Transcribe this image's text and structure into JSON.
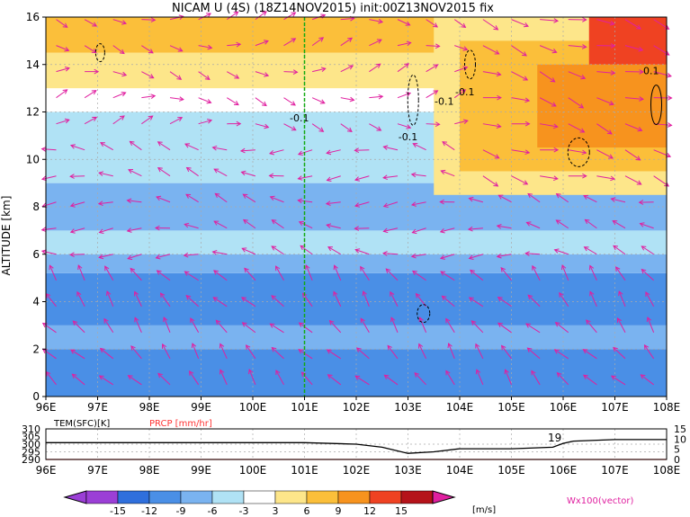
{
  "title": "NICAM U (4S) (18Z14NOV2015) init:00Z13NOV2015 fix",
  "colors": {
    "neg15": "#9b3fd6",
    "neg12": "#2f6fdc",
    "neg9": "#4a8fe6",
    "neg6": "#7ab3f0",
    "neg3": "#b0e2f5",
    "zero": "#ffffff",
    "pos3": "#fde68a",
    "pos6": "#fbbf3a",
    "pos9": "#f7931e",
    "pos12": "#ef4222",
    "pos15": "#b5131a",
    "over": "#e020a0",
    "vector": "#e020a0",
    "green": "#11aa11",
    "prcp": "#ff3333",
    "grid": "#aaaaaa"
  },
  "chart_data": [
    {
      "type": "heatmap",
      "title": "NICAM U (4S) (18Z14NOV2015) init:00Z13NOV2015 fix",
      "xlabel": "",
      "ylabel": "ALTITUDE [km]",
      "x_ticks": [
        "96E",
        "97E",
        "98E",
        "99E",
        "100E",
        "101E",
        "102E",
        "103E",
        "104E",
        "105E",
        "106E",
        "107E",
        "108E"
      ],
      "y_ticks": [
        "0",
        "2",
        "4",
        "6",
        "8",
        "10",
        "12",
        "14",
        "16"
      ],
      "xlim": [
        96,
        108
      ],
      "ylim": [
        0,
        16
      ],
      "grid": true,
      "marker_longitude": 101,
      "contour_labels": [
        "-0.1",
        "-0.1",
        "-0.1",
        "-0.1",
        "0.1"
      ],
      "bands": [
        {
          "z0": 0.0,
          "z1": 2.0,
          "u": -9
        },
        {
          "z0": 2.0,
          "z1": 3.0,
          "u": -6
        },
        {
          "z0": 3.0,
          "z1": 5.2,
          "u": -9
        },
        {
          "z0": 5.2,
          "z1": 6.0,
          "u": -6
        },
        {
          "z0": 6.0,
          "z1": 7.0,
          "u": -3
        },
        {
          "z0": 7.0,
          "z1": 9.0,
          "u": -6
        },
        {
          "z0": 9.0,
          "z1": 12.0,
          "u": -3
        },
        {
          "z0": 12.0,
          "z1": 13.0,
          "u": 0
        },
        {
          "z0": 13.0,
          "z1": 14.5,
          "u": 3
        },
        {
          "z0": 14.5,
          "z1": 16.0,
          "u": 6
        }
      ],
      "east_upper": [
        {
          "x0": 103.5,
          "x1": 108,
          "z0": 8.5,
          "z1": 16,
          "u": 3
        },
        {
          "x0": 104,
          "x1": 108,
          "z0": 9.5,
          "z1": 15,
          "u": 6
        },
        {
          "x0": 105.5,
          "x1": 108,
          "z0": 10.5,
          "z1": 14,
          "u": 9
        },
        {
          "x0": 106.5,
          "x1": 108,
          "z0": 14,
          "z1": 16,
          "u": 12
        }
      ]
    },
    {
      "type": "line",
      "title": "",
      "series": [
        {
          "name": "TEM(SFC)[K]",
          "axis": "left",
          "x": [
            96,
            97,
            98,
            99,
            100,
            101,
            102,
            102.5,
            103,
            103.5,
            104,
            105,
            105.8,
            106,
            106.2,
            107,
            108
          ],
          "y": [
            301,
            301,
            301,
            301,
            301,
            301,
            300,
            298,
            294,
            295,
            297,
            297,
            298,
            300.5,
            302,
            303,
            303
          ]
        },
        {
          "name": "PRCP [mm/hr]",
          "axis": "right",
          "x": [
            96,
            108
          ],
          "y": [
            0,
            0
          ]
        }
      ],
      "left_ticks": [
        "310",
        "305",
        "300",
        "295",
        "290"
      ],
      "right_ticks": [
        "15",
        "10",
        "5",
        "0"
      ],
      "left_ylim": [
        290,
        310
      ],
      "right_ylim": [
        0,
        15
      ],
      "x_ticks": [
        "96E",
        "97E",
        "98E",
        "99E",
        "100E",
        "101E",
        "102E",
        "103E",
        "104E",
        "105E",
        "106E",
        "107E",
        "108E"
      ],
      "annotation": "19"
    }
  ],
  "colorbar": {
    "labels": [
      "-15",
      "-12",
      "-9",
      "-6",
      "-3",
      "3",
      "6",
      "9",
      "12",
      "15"
    ],
    "unit": "[m/s]"
  },
  "vector_note": "Wx100(vector)"
}
